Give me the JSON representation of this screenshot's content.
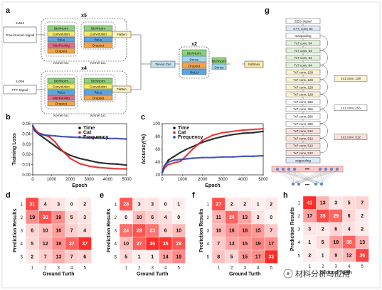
{
  "panel_labels": {
    "a": "a",
    "b": "b",
    "c": "c",
    "d": "d",
    "e": "e",
    "f": "f",
    "g": "g",
    "h": "h"
  },
  "panel_a": {
    "input_time": {
      "size": "1x512",
      "name": "Time-Domain Signal"
    },
    "input_fft": {
      "size": "1x256",
      "name": "FFT Signal"
    },
    "repeat_time": "x5",
    "repeat_fft": "x4",
    "repeat_dense": "x2",
    "time_block_left": [
      "BtchNorm",
      "Convolution",
      "ReLu",
      "MaxPooling",
      "Dropout"
    ],
    "time_block_right": [
      "BtchNorm",
      "Convolution",
      "ReLu",
      "Dropout"
    ],
    "fft_block_left": [
      "BtchNorm",
      "Convolution",
      "ReLu",
      "MaxPooling",
      "Dropout"
    ],
    "fft_block_right": [
      "BtchNorm",
      "Convolution",
      "ReLu",
      "Dropout"
    ],
    "kernel_left": "Kernel nx1",
    "kernel_right": "Kernel 1x1",
    "flatten": "Flatten",
    "concat": "Tensor.Cat",
    "dense_block": [
      "BtchNorm",
      "Dense",
      "Dropout",
      "ReLU"
    ],
    "final_block": [
      "BtchNorm",
      "Dense"
    ],
    "softmax": "Softmax"
  },
  "panel_g": {
    "layers": [
      "EEG Signal",
      "K×7, conv, 64",
      "maxpooling",
      "7x7 conv, 64",
      "7x7 conv, 64",
      "7x7 conv, 64",
      "7x7 conv, 64",
      "7x7 conv, 128",
      "7x7 conv, 128",
      "7x7 conv, 128",
      "7x7 conv, 128",
      "7x7 conv, 256",
      "7x7 conv, 256",
      "7x7 conv, 256",
      "7x7 conv, 256",
      "7x7 conv, 512",
      "7x7 conv, 512",
      "7x7 conv, 512",
      "7x7 conv, 512",
      "avgpooling"
    ],
    "shortcuts": [
      "1x1 conv, 128",
      "1x1 conv, 256",
      "1x1 conv, 512"
    ],
    "dots": "•••",
    "colors": [
      "#ffffff",
      "#dfe6f5",
      "#ffffff",
      "#e1f0d8",
      "#e1f0d8",
      "#e1f0d8",
      "#e1f0d8",
      "#fbf1d4",
      "#fbf1d4",
      "#fbf1d4",
      "#fbf1d4",
      "#ffffff",
      "#ffffff",
      "#ffffff",
      "#ffffff",
      "#fae3dc",
      "#fae3dc",
      "#fae3dc",
      "#fae3dc",
      "#dfe6f5"
    ]
  },
  "chart_data": [
    {
      "id": "b",
      "type": "line",
      "xlabel": "Epoch",
      "ylabel": "Training Loss",
      "xlim": [
        0,
        5000
      ],
      "ylim": [
        0,
        0.05
      ],
      "xticks": [
        0,
        1000,
        2000,
        3000,
        4000,
        5000
      ],
      "yticks": [
        0,
        0.01,
        0.02,
        0.03,
        0.04,
        0.05
      ],
      "legend": "top-right",
      "series": [
        {
          "name": "Time",
          "color": "#111111",
          "x": [
            0,
            100,
            300,
            600,
            900,
            1200,
            1500,
            2000,
            2500,
            3000,
            3500,
            4000,
            4500,
            5000
          ],
          "values": [
            0.048,
            0.044,
            0.04,
            0.036,
            0.032,
            0.028,
            0.024,
            0.019,
            0.016,
            0.014,
            0.012,
            0.011,
            0.0105,
            0.0095
          ]
        },
        {
          "name": "Cat",
          "color": "#e02020",
          "x": [
            0,
            100,
            300,
            600,
            900,
            1200,
            1500,
            2000,
            2500,
            3000,
            3500,
            4000,
            4500,
            5000
          ],
          "values": [
            0.048,
            0.045,
            0.041,
            0.039,
            0.037,
            0.032,
            0.025,
            0.016,
            0.011,
            0.0085,
            0.0072,
            0.0065,
            0.006,
            0.0058
          ]
        },
        {
          "name": "Frequency",
          "color": "#2a3fb0",
          "x": [
            0,
            100,
            300,
            600,
            900,
            1200,
            1500,
            2000,
            2500,
            3000,
            3500,
            4000,
            4500,
            5000
          ],
          "values": [
            0.048,
            0.043,
            0.04,
            0.039,
            0.0385,
            0.038,
            0.0375,
            0.037,
            0.0365,
            0.036,
            0.036,
            0.0355,
            0.0355,
            0.035
          ]
        }
      ]
    },
    {
      "id": "c",
      "type": "line",
      "xlabel": "Epoch",
      "ylabel": "Accuracy(%)",
      "xlim": [
        0,
        5000
      ],
      "ylim": [
        20,
        100
      ],
      "xticks": [
        0,
        1000,
        2000,
        3000,
        4000,
        5000
      ],
      "yticks": [
        20,
        40,
        60,
        80,
        100
      ],
      "legend": "top-left",
      "series": [
        {
          "name": "Time",
          "color": "#111111",
          "x": [
            0,
            100,
            300,
            600,
            900,
            1200,
            1500,
            2000,
            2500,
            3000,
            3500,
            4000,
            4500,
            5000
          ],
          "values": [
            23,
            33,
            43,
            49,
            55,
            60,
            64,
            71,
            76,
            80,
            83,
            85,
            86,
            88
          ]
        },
        {
          "name": "Cat",
          "color": "#e02020",
          "x": [
            0,
            100,
            300,
            600,
            900,
            1200,
            1500,
            2000,
            2500,
            3000,
            3500,
            4000,
            4500,
            5000
          ],
          "values": [
            23,
            30,
            36,
            39,
            41,
            50,
            60,
            74,
            82,
            86,
            88,
            90,
            91,
            92
          ]
        },
        {
          "name": "Frequency",
          "color": "#2a3fb0",
          "x": [
            0,
            100,
            300,
            600,
            900,
            1200,
            1500,
            2000,
            2500,
            3000,
            3500,
            4000,
            4500,
            5000
          ],
          "values": [
            23,
            34,
            40,
            43,
            44,
            45,
            46,
            47,
            47,
            48,
            48,
            49,
            49,
            50
          ]
        }
      ]
    },
    {
      "id": "d",
      "type": "heatmap",
      "xlabel": "Ground Turth",
      "ylabel": "Prediction Results",
      "xticks": [
        1,
        2,
        3,
        4,
        5
      ],
      "yticks": [
        1,
        2,
        3,
        4,
        5
      ],
      "values": [
        [
          31,
          4,
          3,
          0,
          2
        ],
        [
          19,
          30,
          19,
          5,
          3
        ],
        [
          6,
          10,
          16,
          7,
          4
        ],
        [
          5,
          12,
          19,
          27,
          37
        ],
        [
          2,
          7,
          13,
          7,
          6
        ]
      ]
    },
    {
      "id": "e",
      "type": "heatmap",
      "xlabel": "Ground Turth",
      "ylabel": "Prediction Results",
      "xticks": [
        1,
        2,
        3,
        4,
        5
      ],
      "yticks": [
        1,
        2,
        3,
        4,
        5
      ],
      "values": [
        [
          28,
          3,
          3,
          0,
          1
        ],
        [
          0,
          10,
          6,
          4,
          0
        ],
        [
          24,
          29,
          23,
          6,
          10
        ],
        [
          10,
          27,
          36,
          35,
          29
        ],
        [
          5,
          1,
          1,
          14,
          19
        ]
      ]
    },
    {
      "id": "f",
      "type": "heatmap",
      "xlabel": "Ground Turth",
      "ylabel": "Prediction Results",
      "xticks": [
        1,
        2,
        3,
        4,
        5
      ],
      "yticks": [
        1,
        2,
        3,
        4,
        5
      ],
      "values": [
        [
          27,
          2,
          2,
          1,
          2
        ],
        [
          11,
          24,
          13,
          3,
          0
        ],
        [
          10,
          16,
          18,
          15,
          7
        ],
        [
          7,
          13,
          15,
          19,
          17
        ],
        [
          8,
          5,
          15,
          17,
          33
        ]
      ]
    },
    {
      "id": "h",
      "type": "heatmap",
      "xlabel": "Ground Turth",
      "ylabel": "Prediction Results",
      "xticks": [
        1,
        2,
        3,
        4,
        5
      ],
      "yticks": [
        1,
        2,
        3,
        4,
        5
      ],
      "values": [
        [
          41,
          13,
          3,
          5,
          7
        ],
        [
          17,
          35,
          29,
          6,
          2
        ],
        [
          3,
          2,
          6,
          4,
          2
        ],
        [
          1,
          5,
          18,
          30,
          13
        ],
        [
          2,
          1,
          9,
          12,
          36
        ]
      ]
    }
  ],
  "watermark": {
    "text": "材料分析与应用"
  }
}
